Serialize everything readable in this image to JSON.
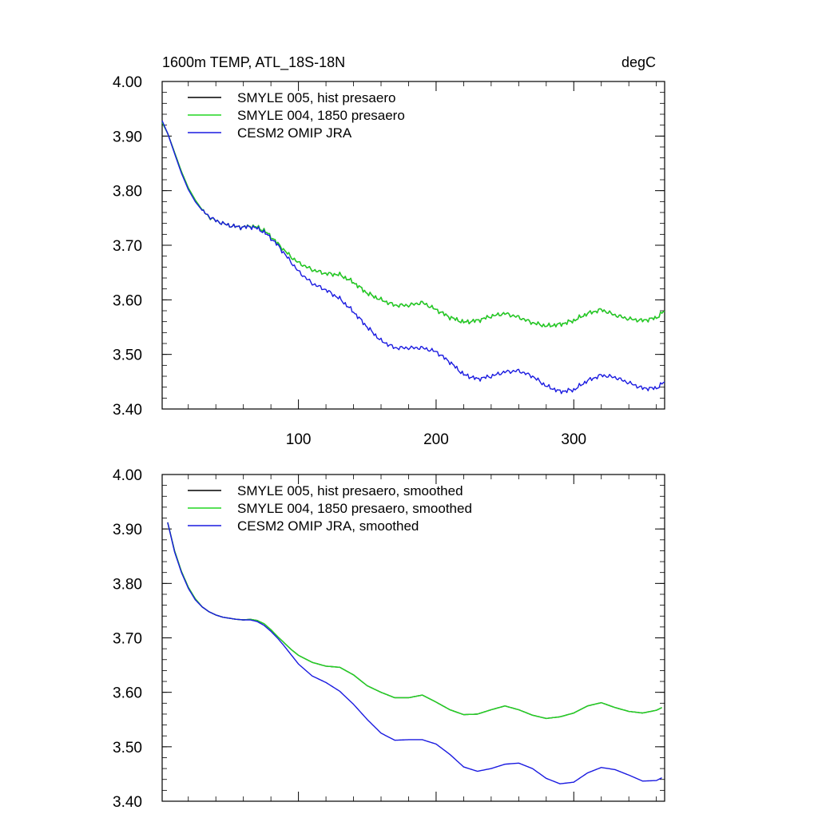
{
  "figure": {
    "title_left": "1600m TEMP, ATL_18S-18N",
    "title_right": "degC"
  },
  "chart_data": [
    {
      "type": "line",
      "xlim": [
        1,
        366
      ],
      "ylim": [
        3.4,
        4.0
      ],
      "xticks": [
        100,
        200,
        300
      ],
      "xtick_labels": [
        "100",
        "200",
        "300"
      ],
      "yticks": [
        4.0,
        3.9,
        3.8,
        3.7,
        3.6,
        3.5,
        3.4
      ],
      "ytick_labels": [
        "4.00",
        "3.90",
        "3.80",
        "3.70",
        "3.60",
        "3.50",
        "3.40"
      ],
      "grid": false,
      "legend_position": "top-left",
      "noisy": true,
      "series": [
        {
          "name": "SMYLE 005, hist presaero",
          "color": "#000000",
          "x": [
            1,
            5,
            10,
            15,
            20,
            25,
            30,
            35,
            40,
            45,
            50,
            55,
            60,
            65,
            70,
            75,
            80,
            85,
            90,
            95,
            100,
            110,
            120,
            130,
            140,
            150,
            160,
            170,
            180,
            190,
            200,
            210,
            220,
            230,
            240,
            250,
            260,
            270,
            280,
            290,
            300,
            310,
            320,
            330,
            340,
            350,
            360,
            366
          ],
          "values": [
            3.925,
            3.905,
            3.87,
            3.835,
            3.805,
            3.783,
            3.765,
            3.752,
            3.745,
            3.74,
            3.736,
            3.734,
            3.733,
            3.735,
            3.733,
            3.727,
            3.716,
            3.703,
            3.69,
            3.678,
            3.668,
            3.655,
            3.648,
            3.646,
            3.632,
            3.612,
            3.6,
            3.59,
            3.59,
            3.595,
            3.582,
            3.568,
            3.559,
            3.562,
            3.57,
            3.575,
            3.568,
            3.558,
            3.552,
            3.555,
            3.562,
            3.575,
            3.582,
            3.572,
            3.565,
            3.562,
            3.567,
            3.58
          ]
        },
        {
          "name": "SMYLE 004, 1850 presaero",
          "color": "#22d622",
          "x": [
            1,
            5,
            10,
            15,
            20,
            25,
            30,
            35,
            40,
            45,
            50,
            55,
            60,
            65,
            70,
            75,
            80,
            85,
            90,
            95,
            100,
            110,
            120,
            130,
            140,
            150,
            160,
            170,
            180,
            190,
            200,
            210,
            220,
            230,
            240,
            250,
            260,
            270,
            280,
            290,
            300,
            310,
            320,
            330,
            340,
            350,
            360,
            366
          ],
          "values": [
            3.925,
            3.905,
            3.87,
            3.835,
            3.805,
            3.783,
            3.765,
            3.752,
            3.745,
            3.74,
            3.736,
            3.734,
            3.733,
            3.735,
            3.733,
            3.727,
            3.716,
            3.703,
            3.69,
            3.678,
            3.668,
            3.655,
            3.648,
            3.646,
            3.632,
            3.612,
            3.6,
            3.59,
            3.59,
            3.595,
            3.582,
            3.568,
            3.559,
            3.562,
            3.57,
            3.575,
            3.568,
            3.558,
            3.552,
            3.555,
            3.562,
            3.575,
            3.582,
            3.572,
            3.565,
            3.562,
            3.567,
            3.58
          ]
        },
        {
          "name": "CESM2 OMIP JRA",
          "color": "#1a1ae0",
          "x": [
            1,
            5,
            10,
            15,
            20,
            25,
            30,
            35,
            40,
            45,
            50,
            55,
            60,
            65,
            70,
            75,
            80,
            85,
            90,
            95,
            100,
            110,
            120,
            130,
            140,
            150,
            160,
            170,
            180,
            190,
            200,
            210,
            220,
            230,
            240,
            250,
            260,
            270,
            280,
            290,
            300,
            310,
            320,
            330,
            340,
            350,
            360,
            366
          ],
          "values": [
            3.928,
            3.905,
            3.868,
            3.832,
            3.802,
            3.78,
            3.764,
            3.753,
            3.745,
            3.74,
            3.736,
            3.734,
            3.733,
            3.734,
            3.731,
            3.724,
            3.713,
            3.7,
            3.684,
            3.668,
            3.652,
            3.63,
            3.618,
            3.602,
            3.578,
            3.55,
            3.525,
            3.512,
            3.512,
            3.512,
            3.505,
            3.486,
            3.463,
            3.455,
            3.46,
            3.468,
            3.47,
            3.46,
            3.442,
            3.432,
            3.435,
            3.452,
            3.462,
            3.458,
            3.448,
            3.438,
            3.438,
            3.45
          ]
        }
      ]
    },
    {
      "type": "line",
      "xlim": [
        1,
        366
      ],
      "ylim": [
        3.4,
        4.0
      ],
      "xticks": [
        100,
        200,
        300
      ],
      "xtick_labels": [],
      "yticks": [
        4.0,
        3.9,
        3.8,
        3.7,
        3.6,
        3.5,
        3.4
      ],
      "ytick_labels": [
        "4.00",
        "3.90",
        "3.80",
        "3.70",
        "3.60",
        "3.50",
        "3.40"
      ],
      "grid": false,
      "legend_position": "top-left",
      "noisy": false,
      "series": [
        {
          "name": "SMYLE 005, hist presaero, smoothed",
          "color": "#000000",
          "x": [
            5,
            10,
            15,
            20,
            25,
            30,
            35,
            40,
            45,
            50,
            55,
            60,
            65,
            70,
            75,
            80,
            85,
            90,
            95,
            100,
            110,
            120,
            130,
            140,
            150,
            160,
            170,
            180,
            190,
            200,
            210,
            220,
            230,
            240,
            250,
            260,
            270,
            280,
            290,
            300,
            310,
            320,
            330,
            340,
            350,
            360,
            364
          ],
          "values": [
            3.912,
            3.86,
            3.822,
            3.793,
            3.772,
            3.757,
            3.748,
            3.742,
            3.738,
            3.736,
            3.734,
            3.733,
            3.734,
            3.732,
            3.726,
            3.715,
            3.702,
            3.69,
            3.678,
            3.668,
            3.655,
            3.648,
            3.646,
            3.632,
            3.612,
            3.6,
            3.59,
            3.59,
            3.595,
            3.582,
            3.568,
            3.559,
            3.56,
            3.568,
            3.575,
            3.568,
            3.558,
            3.552,
            3.555,
            3.562,
            3.575,
            3.581,
            3.572,
            3.565,
            3.562,
            3.567,
            3.572
          ]
        },
        {
          "name": "SMYLE 004, 1850 presaero, smoothed",
          "color": "#22d622",
          "x": [
            5,
            10,
            15,
            20,
            25,
            30,
            35,
            40,
            45,
            50,
            55,
            60,
            65,
            70,
            75,
            80,
            85,
            90,
            95,
            100,
            110,
            120,
            130,
            140,
            150,
            160,
            170,
            180,
            190,
            200,
            210,
            220,
            230,
            240,
            250,
            260,
            270,
            280,
            290,
            300,
            310,
            320,
            330,
            340,
            350,
            360,
            364
          ],
          "values": [
            3.912,
            3.86,
            3.822,
            3.793,
            3.772,
            3.757,
            3.748,
            3.742,
            3.738,
            3.736,
            3.734,
            3.733,
            3.734,
            3.732,
            3.726,
            3.715,
            3.702,
            3.69,
            3.678,
            3.668,
            3.655,
            3.648,
            3.646,
            3.632,
            3.612,
            3.6,
            3.59,
            3.59,
            3.595,
            3.582,
            3.568,
            3.559,
            3.56,
            3.568,
            3.575,
            3.568,
            3.558,
            3.552,
            3.555,
            3.562,
            3.575,
            3.581,
            3.572,
            3.565,
            3.562,
            3.567,
            3.572
          ]
        },
        {
          "name": "CESM2 OMIP JRA, smoothed",
          "color": "#1a1ae0",
          "x": [
            5,
            10,
            15,
            20,
            25,
            30,
            35,
            40,
            45,
            50,
            55,
            60,
            65,
            70,
            75,
            80,
            85,
            90,
            95,
            100,
            110,
            120,
            130,
            140,
            150,
            160,
            170,
            180,
            190,
            200,
            210,
            220,
            230,
            240,
            250,
            260,
            270,
            280,
            290,
            300,
            310,
            320,
            330,
            340,
            350,
            360,
            364
          ],
          "values": [
            3.912,
            3.858,
            3.82,
            3.791,
            3.77,
            3.757,
            3.748,
            3.742,
            3.738,
            3.736,
            3.734,
            3.733,
            3.733,
            3.73,
            3.723,
            3.712,
            3.699,
            3.684,
            3.668,
            3.652,
            3.63,
            3.618,
            3.602,
            3.578,
            3.55,
            3.525,
            3.512,
            3.513,
            3.513,
            3.505,
            3.486,
            3.463,
            3.455,
            3.46,
            3.468,
            3.47,
            3.46,
            3.442,
            3.432,
            3.435,
            3.452,
            3.462,
            3.458,
            3.448,
            3.437,
            3.438,
            3.443
          ]
        }
      ]
    }
  ]
}
